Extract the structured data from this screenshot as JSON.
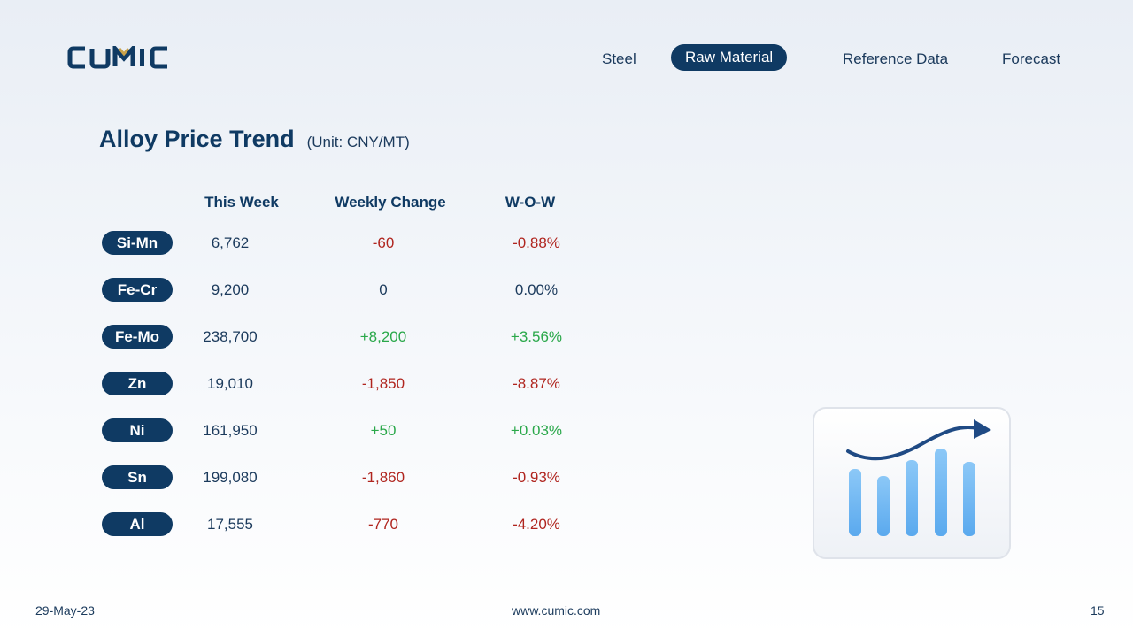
{
  "brand": {
    "logo_text": "CUMIC",
    "accent": "#0f3a63",
    "logo_gold": "#c9a24a"
  },
  "nav": {
    "items": [
      {
        "label": "Steel",
        "active": false
      },
      {
        "label": "Raw Material",
        "active": true
      },
      {
        "label": "Reference Data",
        "active": false
      },
      {
        "label": "Forecast",
        "active": false
      }
    ]
  },
  "header": {
    "title": "Alloy Price Trend",
    "unit": "(Unit: CNY/MT)"
  },
  "table": {
    "columns": [
      "This Week",
      "Weekly Change",
      "W-O-W"
    ],
    "rows": [
      {
        "name": "Si-Mn",
        "this_week": "6,762",
        "weekly_change": "-60",
        "wow": "-0.88%",
        "trend": "neg"
      },
      {
        "name": "Fe-Cr",
        "this_week": "9,200",
        "weekly_change": "0",
        "wow": "0.00%",
        "trend": "neu"
      },
      {
        "name": "Fe-Mo",
        "this_week": "238,700",
        "weekly_change": "+8,200",
        "wow": "+3.56%",
        "trend": "pos"
      },
      {
        "name": "Zn",
        "this_week": "19,010",
        "weekly_change": "-1,850",
        "wow": "-8.87%",
        "trend": "neg"
      },
      {
        "name": "Ni",
        "this_week": "161,950",
        "weekly_change": "+50",
        "wow": "+0.03%",
        "trend": "pos"
      },
      {
        "name": "Sn",
        "this_week": "199,080",
        "weekly_change": "-1,860",
        "wow": "-0.93%",
        "trend": "neg"
      },
      {
        "name": "Al",
        "this_week": "17,555",
        "weekly_change": "-770",
        "wow": "-4.20%",
        "trend": "neg"
      }
    ]
  },
  "colors": {
    "negative": "#b0251f",
    "positive": "#2aa84a",
    "bar": "#6db6f2"
  },
  "illustration": {
    "icon": "rising-bar-chart-icon"
  },
  "footer": {
    "date": "29-May-23",
    "website": "www.cumic.com",
    "page_number": "15"
  }
}
